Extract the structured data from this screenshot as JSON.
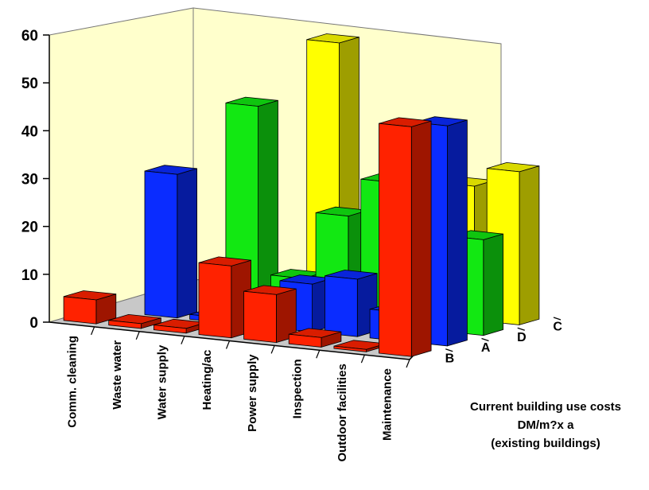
{
  "chart_data": {
    "type": "bar",
    "style": "3d-grouped",
    "title": "",
    "caption": [
      "Current building use costs",
      "DM/m?x a",
      "(existing buildings)"
    ],
    "categories": [
      "Comm. cleaning",
      "Waste water",
      "Water supply",
      "Heating/ac",
      "Power supply",
      "Inspection",
      "Outdoor facilities",
      "Maintenance"
    ],
    "yticks": [
      "0",
      "10",
      "20",
      "30",
      "40",
      "50",
      "60"
    ],
    "ylim": [
      0,
      60
    ],
    "grid": false,
    "series": [
      {
        "name": "B",
        "color": "#ff2200",
        "values": [
          5,
          1,
          1,
          15,
          10,
          2,
          0.5,
          48
        ]
      },
      {
        "name": "A",
        "color": "#0a2cff",
        "values": [
          0,
          0,
          1,
          2,
          10,
          12,
          6,
          46
        ]
      },
      {
        "name": "D",
        "color": "#12e812",
        "values": [
          0,
          0,
          0,
          0,
          13,
          30,
          14,
          20
        ]
      },
      {
        "name": "C",
        "color": "#ffff00",
        "values": [
          0,
          0,
          0,
          0,
          0,
          15,
          0,
          32
        ]
      }
    ],
    "extra_bars": [
      {
        "series": "A",
        "category": "Waste water",
        "value": 30
      },
      {
        "series": "D",
        "category": "Water supply",
        "value": 43
      },
      {
        "series": "C",
        "category": "Heating/ac",
        "value": 55
      },
      {
        "series": "C",
        "category": "Inspection",
        "value": 37
      },
      {
        "series": "C",
        "category": "Outdoor facilities",
        "value": 28
      },
      {
        "series": "D",
        "category": "Heating/ac",
        "value": 8
      },
      {
        "series": "C",
        "category": "Power supply",
        "value": 18
      },
      {
        "series": "D",
        "category": "Power supply",
        "value": 22
      }
    ],
    "colors": {
      "wall": "#ffffcc",
      "floor": "#c8c8c8"
    }
  }
}
